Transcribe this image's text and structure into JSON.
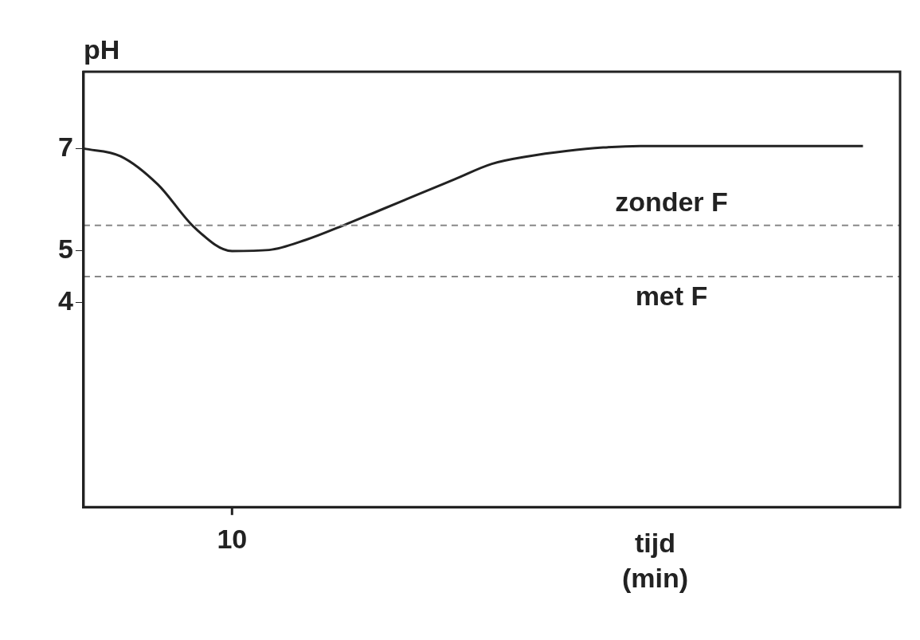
{
  "chart_data": {
    "type": "line",
    "ylabel": "pH",
    "xlabel": "tijd\n(min)",
    "categories": [
      null,
      null,
      null,
      null,
      "10",
      null,
      null,
      null,
      null,
      null,
      null,
      null,
      null,
      null,
      null,
      null,
      null,
      null,
      null,
      null,
      null,
      null,
      null
    ],
    "series": [
      {
        "color": "#222222",
        "values": [
          7.0,
          6.85,
          6.3,
          5.45,
          5.0,
          5.02,
          5.22,
          5.5,
          5.8,
          6.1,
          6.4,
          6.7,
          6.85,
          6.95,
          7.02,
          7.05,
          7.05,
          7.05,
          7.05,
          7.05,
          7.05,
          7.05,
          null
        ]
      }
    ],
    "ylim": [
      0,
      8.5
    ],
    "yticks": [
      4,
      5,
      7
    ],
    "ref_lines": [
      {
        "axis": "y",
        "value": 5.5,
        "label": "zonder F",
        "line_style": "dashed",
        "color": "#888888"
      },
      {
        "axis": "y",
        "value": 4.5,
        "label": "met F",
        "line_style": "dashed",
        "color": "#888888"
      }
    ],
    "grid": false,
    "legend": false,
    "marker": "none",
    "line_style": "solid"
  }
}
